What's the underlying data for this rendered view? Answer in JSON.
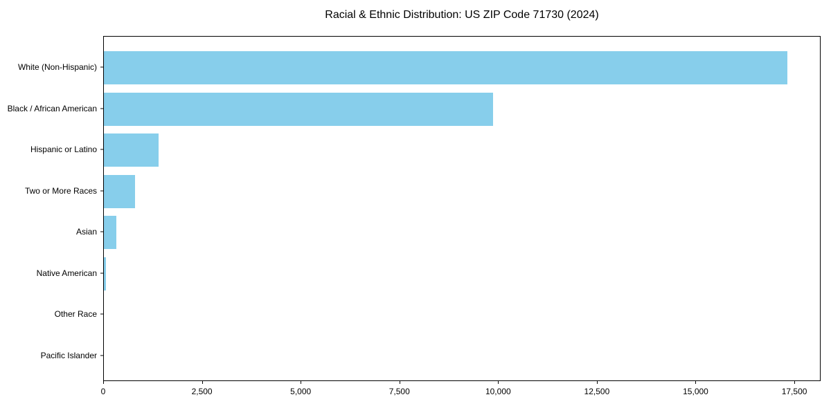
{
  "chart_data": {
    "type": "bar",
    "orientation": "horizontal",
    "title": "Racial & Ethnic Distribution: US ZIP Code 71730 (2024)",
    "categories": [
      "White (Non-Hispanic)",
      "Black / African American",
      "Hispanic or Latino",
      "Two or More Races",
      "Asian",
      "Native American",
      "Other Race",
      "Pacific Islander"
    ],
    "values": [
      17300,
      9850,
      1380,
      790,
      320,
      50,
      0,
      0
    ],
    "xlabel": "",
    "ylabel": "",
    "xlim": [
      0,
      18165
    ],
    "xticks": [
      {
        "value": 0,
        "label": "0"
      },
      {
        "value": 2500,
        "label": "2,500"
      },
      {
        "value": 5000,
        "label": "5,000"
      },
      {
        "value": 7500,
        "label": "7,500"
      },
      {
        "value": 10000,
        "label": "10,000"
      },
      {
        "value": 12500,
        "label": "12,500"
      },
      {
        "value": 15000,
        "label": "15,000"
      },
      {
        "value": 17500,
        "label": "17,500"
      }
    ],
    "grid": false,
    "legend": null,
    "bar_color": "#87CEEB",
    "axis_color": "#000000",
    "background_color": "#ffffff"
  }
}
